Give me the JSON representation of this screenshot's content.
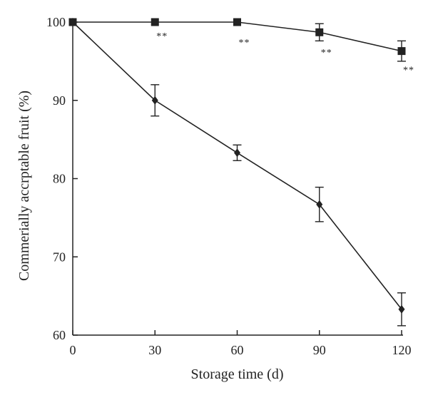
{
  "chart_data": {
    "type": "line",
    "title": "",
    "xlabel": "Storage time (d)",
    "ylabel": "Commerially accrptable fruit (%)",
    "xlim": [
      0,
      120
    ],
    "ylim": [
      60,
      100
    ],
    "x_ticks": [
      0,
      30,
      60,
      90,
      120
    ],
    "y_ticks": [
      60,
      70,
      80,
      90,
      100
    ],
    "grid": false,
    "legend": "none",
    "series": [
      {
        "marker": "square",
        "color": "#222222",
        "points": [
          {
            "x": 0,
            "y": 100,
            "err": 0
          },
          {
            "x": 30,
            "y": 100,
            "err": 0
          },
          {
            "x": 60,
            "y": 100,
            "err": 0
          },
          {
            "x": 90,
            "y": 98.7,
            "err": 1.1
          },
          {
            "x": 120,
            "y": 96.3,
            "err": 1.3
          }
        ]
      },
      {
        "marker": "diamond",
        "color": "#222222",
        "points": [
          {
            "x": 0,
            "y": 100,
            "err": 0
          },
          {
            "x": 30,
            "y": 90,
            "err": 2.0
          },
          {
            "x": 60,
            "y": 83.3,
            "err": 1.0
          },
          {
            "x": 90,
            "y": 76.7,
            "err": 2.2
          },
          {
            "x": 120,
            "y": 63.3,
            "err": 2.1
          }
        ]
      }
    ],
    "annotations": [
      {
        "x": 30,
        "y": 97.8,
        "text": "**"
      },
      {
        "x": 60,
        "y": 97.0,
        "text": "**"
      },
      {
        "x": 90,
        "y": 95.7,
        "text": "**"
      },
      {
        "x": 120,
        "y": 93.5,
        "text": "**"
      }
    ]
  }
}
